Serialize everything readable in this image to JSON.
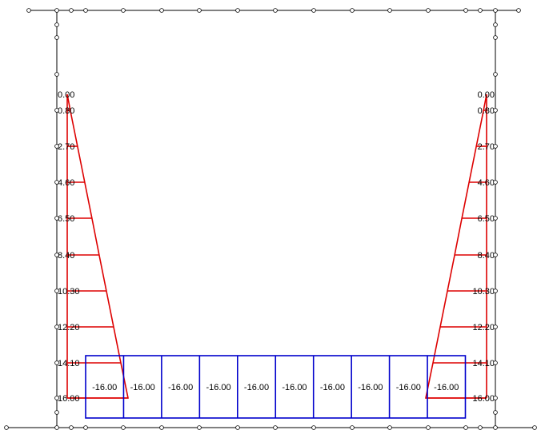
{
  "colors": {
    "frame": "#000000",
    "wall_load": "#dd0000",
    "bottom_load": "#0000cc"
  },
  "icons": {
    "node": "hollow-circle-node-icon"
  },
  "left_wall_labels": [
    "0.00",
    "0.80",
    "2.70",
    "4.60",
    "6.50",
    "8.40",
    "10.30",
    "12.20",
    "14.10",
    "16.00"
  ],
  "right_wall_labels": [
    "0.00",
    "0.80",
    "2.70",
    "4.60",
    "6.50",
    "8.40",
    "10.30",
    "12.20",
    "14.10",
    "16.00"
  ],
  "bottom_labels": [
    "-16.00",
    "-16.00",
    "-16.00",
    "-16.00",
    "-16.00",
    "-16.00",
    "-16.00",
    "-16.00",
    "-16.00",
    "-16.00"
  ]
}
